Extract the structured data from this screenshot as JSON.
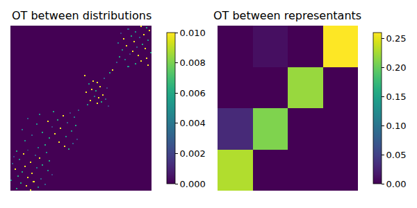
{
  "chart_data": [
    {
      "type": "heatmap",
      "title": "OT between distributions",
      "color": "Viridis",
      "tick_labels": false,
      "n_rows": 120,
      "n_cols": 100,
      "cells": [
        [
          0,
          92,
          0.01
        ],
        [
          1,
          96,
          0.006
        ],
        [
          2,
          83,
          0.003
        ],
        [
          3,
          98,
          0.01
        ],
        [
          4,
          88,
          0.005
        ],
        [
          5,
          78,
          0.002
        ],
        [
          6,
          94,
          0.01
        ],
        [
          7,
          85,
          0.006
        ],
        [
          8,
          91,
          0.003
        ],
        [
          9,
          80,
          0.01
        ],
        [
          10,
          97,
          0.005
        ],
        [
          11,
          87,
          0.01
        ],
        [
          12,
          76,
          0.004
        ],
        [
          13,
          93,
          0.006
        ],
        [
          14,
          82,
          0.01
        ],
        [
          15,
          89,
          0.003
        ],
        [
          16,
          95,
          0.01
        ],
        [
          17,
          79,
          0.005
        ],
        [
          18,
          86,
          0.01
        ],
        [
          19,
          99,
          0.006
        ],
        [
          20,
          84,
          0.002
        ],
        [
          21,
          90,
          0.01
        ],
        [
          22,
          77,
          0.006
        ],
        [
          23,
          96,
          0.01
        ],
        [
          24,
          81,
          0.004
        ],
        [
          25,
          92,
          0.01
        ],
        [
          26,
          75,
          0.003
        ],
        [
          27,
          88,
          0.006
        ],
        [
          28,
          97,
          0.01
        ],
        [
          29,
          83,
          0.005
        ],
        [
          32,
          72,
          0.01
        ],
        [
          34,
          70,
          0.006
        ],
        [
          36,
          52,
          0.01
        ],
        [
          38,
          66,
          0.003
        ],
        [
          40,
          58,
          0.01
        ],
        [
          41,
          61,
          0.01
        ],
        [
          42,
          55,
          0.005
        ],
        [
          44,
          63,
          0.01
        ],
        [
          45,
          68,
          0.002
        ],
        [
          46,
          57,
          0.01
        ],
        [
          47,
          60,
          0.006
        ],
        [
          48,
          53,
          0.01
        ],
        [
          50,
          65,
          0.01
        ],
        [
          51,
          59,
          0.004
        ],
        [
          52,
          62,
          0.01
        ],
        [
          53,
          67,
          0.003
        ],
        [
          54,
          56,
          0.01
        ],
        [
          55,
          64,
          0.006
        ],
        [
          56,
          61,
          0.01
        ],
        [
          57,
          54,
          0.005
        ],
        [
          58,
          69,
          0.002
        ],
        [
          61,
          48,
          0.003
        ],
        [
          62,
          30,
          0.006
        ],
        [
          63,
          42,
          0.002
        ],
        [
          64,
          20,
          0.005
        ],
        [
          65,
          37,
          0.01
        ],
        [
          66,
          45,
          0.004
        ],
        [
          67,
          12,
          0.003
        ],
        [
          68,
          33,
          0.006
        ],
        [
          69,
          26,
          0.01
        ],
        [
          70,
          40,
          0.003
        ],
        [
          71,
          18,
          0.005
        ],
        [
          72,
          46,
          0.006
        ],
        [
          73,
          29,
          0.002
        ],
        [
          74,
          35,
          0.01
        ],
        [
          75,
          8,
          0.004
        ],
        [
          76,
          43,
          0.005
        ],
        [
          77,
          22,
          0.006
        ],
        [
          78,
          31,
          0.01
        ],
        [
          79,
          15,
          0.003
        ],
        [
          80,
          39,
          0.005
        ],
        [
          81,
          27,
          0.006
        ],
        [
          82,
          47,
          0.002
        ],
        [
          83,
          10,
          0.005
        ],
        [
          84,
          34,
          0.01
        ],
        [
          85,
          44,
          0.003
        ],
        [
          86,
          24,
          0.006
        ],
        [
          87,
          38,
          0.01
        ],
        [
          88,
          19,
          0.004
        ],
        [
          89,
          41,
          0.006
        ],
        [
          90,
          12,
          0.003
        ],
        [
          91,
          4,
          0.006
        ],
        [
          92,
          25,
          0.005
        ],
        [
          93,
          9,
          0.01
        ],
        [
          94,
          17,
          0.003
        ],
        [
          95,
          2,
          0.002
        ],
        [
          96,
          20,
          0.01
        ],
        [
          97,
          6,
          0.005
        ],
        [
          98,
          27,
          0.006
        ],
        [
          99,
          14,
          0.01
        ],
        [
          100,
          1,
          0.003
        ],
        [
          101,
          22,
          0.006
        ],
        [
          102,
          10,
          0.01
        ],
        [
          103,
          18,
          0.004
        ],
        [
          104,
          3,
          0.01
        ],
        [
          105,
          26,
          0.005
        ],
        [
          106,
          8,
          0.006
        ],
        [
          107,
          15,
          0.01
        ],
        [
          108,
          29,
          0.002
        ],
        [
          109,
          5,
          0.006
        ],
        [
          110,
          12,
          0.01
        ],
        [
          111,
          21,
          0.003
        ],
        [
          112,
          0,
          0.005
        ],
        [
          113,
          16,
          0.01
        ],
        [
          114,
          7,
          0.006
        ],
        [
          115,
          24,
          0.003
        ],
        [
          116,
          11,
          0.01
        ],
        [
          117,
          19,
          0.005
        ],
        [
          118,
          4,
          0.006
        ],
        [
          119,
          14,
          0.01
        ]
      ],
      "colorbar": {
        "range": [
          0,
          0.01
        ],
        "ticks": [
          {
            "value": 0,
            "label": "0.000"
          },
          {
            "value": 0.002,
            "label": "0.002"
          },
          {
            "value": 0.004,
            "label": "0.004"
          },
          {
            "value": 0.006,
            "label": "0.006"
          },
          {
            "value": 0.008,
            "label": "0.008"
          },
          {
            "value": 0.01,
            "label": "0.010"
          }
        ]
      }
    },
    {
      "type": "heatmap",
      "title": "OT between representants",
      "color": "Viridis",
      "tick_labels": false,
      "n_rows": 4,
      "n_cols": 4,
      "z": [
        [
          0,
          0.01,
          0,
          0.26
        ],
        [
          0,
          0,
          0.22,
          0
        ],
        [
          0.03,
          0.21,
          0,
          0
        ],
        [
          0.23,
          0,
          0,
          0
        ]
      ],
      "colorbar": {
        "range": [
          0,
          0.26
        ],
        "ticks": [
          {
            "value": 0,
            "label": "0.00"
          },
          {
            "value": 0.05,
            "label": "0.05"
          },
          {
            "value": 0.1,
            "label": "0.10"
          },
          {
            "value": 0.15,
            "label": "0.15"
          },
          {
            "value": 0.2,
            "label": "0.20"
          },
          {
            "value": 0.25,
            "label": "0.25"
          }
        ]
      }
    }
  ]
}
